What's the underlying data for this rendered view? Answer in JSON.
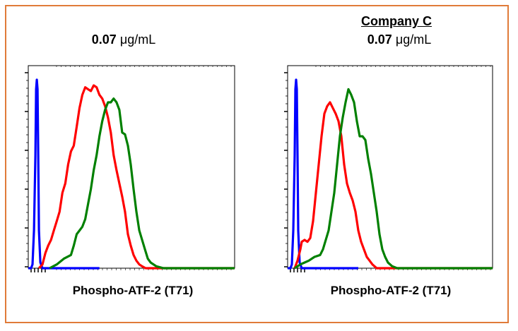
{
  "chart_data": [
    {
      "type": "line",
      "panel_header": "",
      "title_value": "0.07",
      "title_unit": " μg/mL",
      "xlabel": "Phospho-ATF-2 (T71)",
      "ylabel": "",
      "x_scale": "log",
      "grid": false,
      "series": [
        {
          "color": "#0000ff",
          "points": [
            [
              0,
              0
            ],
            [
              4,
              0
            ],
            [
              6,
              2
            ],
            [
              8,
              20
            ],
            [
              10,
              60
            ],
            [
              11,
              95
            ],
            [
              12,
              100
            ],
            [
              13,
              95
            ],
            [
              14,
              60
            ],
            [
              15,
              20
            ],
            [
              17,
              3
            ],
            [
              20,
              0
            ],
            [
              100,
              0
            ]
          ]
        },
        {
          "color": "#ff0000",
          "points": [
            [
              15,
              0
            ],
            [
              20,
              2
            ],
            [
              24,
              8
            ],
            [
              28,
              12
            ],
            [
              32,
              15
            ],
            [
              36,
              20
            ],
            [
              40,
              25
            ],
            [
              44,
              30
            ],
            [
              48,
              40
            ],
            [
              52,
              45
            ],
            [
              56,
              55
            ],
            [
              60,
              62
            ],
            [
              64,
              65
            ],
            [
              68,
              75
            ],
            [
              72,
              85
            ],
            [
              76,
              92
            ],
            [
              80,
              96
            ],
            [
              84,
              95
            ],
            [
              88,
              94
            ],
            [
              92,
              97
            ],
            [
              96,
              96
            ],
            [
              100,
              92
            ],
            [
              104,
              90
            ],
            [
              108,
              86
            ],
            [
              112,
              80
            ],
            [
              116,
              72
            ],
            [
              120,
              60
            ],
            [
              124,
              52
            ],
            [
              128,
              45
            ],
            [
              132,
              38
            ],
            [
              136,
              30
            ],
            [
              140,
              18
            ],
            [
              144,
              12
            ],
            [
              148,
              7
            ],
            [
              152,
              4
            ],
            [
              156,
              2
            ],
            [
              160,
              1
            ],
            [
              165,
              0
            ],
            [
              290,
              0
            ]
          ]
        },
        {
          "color": "#008000",
          "points": [
            [
              30,
              0
            ],
            [
              40,
              2
            ],
            [
              50,
              5
            ],
            [
              60,
              7
            ],
            [
              64,
              12
            ],
            [
              68,
              18
            ],
            [
              72,
              20
            ],
            [
              76,
              22
            ],
            [
              80,
              26
            ],
            [
              84,
              34
            ],
            [
              88,
              42
            ],
            [
              92,
              52
            ],
            [
              96,
              60
            ],
            [
              100,
              70
            ],
            [
              104,
              78
            ],
            [
              108,
              84
            ],
            [
              112,
              88
            ],
            [
              116,
              88
            ],
            [
              120,
              90
            ],
            [
              124,
              88
            ],
            [
              128,
              84
            ],
            [
              132,
              72
            ],
            [
              136,
              71
            ],
            [
              140,
              65
            ],
            [
              144,
              55
            ],
            [
              148,
              42
            ],
            [
              152,
              30
            ],
            [
              156,
              20
            ],
            [
              160,
              15
            ],
            [
              164,
              10
            ],
            [
              168,
              5
            ],
            [
              172,
              3
            ],
            [
              180,
              1
            ],
            [
              190,
              0
            ],
            [
              290,
              0
            ]
          ]
        }
      ]
    },
    {
      "type": "line",
      "panel_header": "Company C",
      "title_value": "0.07",
      "title_unit": " μg/mL",
      "xlabel": "Phospho-ATF-2 (T71)",
      "ylabel": "",
      "x_scale": "log",
      "grid": false,
      "series": [
        {
          "color": "#0000ff",
          "points": [
            [
              0,
              0
            ],
            [
              4,
              0
            ],
            [
              6,
              2
            ],
            [
              8,
              20
            ],
            [
              10,
              60
            ],
            [
              11,
              95
            ],
            [
              12,
              100
            ],
            [
              13,
              95
            ],
            [
              14,
              60
            ],
            [
              15,
              20
            ],
            [
              17,
              3
            ],
            [
              20,
              0
            ],
            [
              100,
              0
            ]
          ]
        },
        {
          "color": "#ff0000",
          "points": [
            [
              10,
              0
            ],
            [
              14,
              4
            ],
            [
              18,
              10
            ],
            [
              20,
              14
            ],
            [
              24,
              15
            ],
            [
              28,
              14
            ],
            [
              32,
              16
            ],
            [
              36,
              25
            ],
            [
              40,
              40
            ],
            [
              44,
              55
            ],
            [
              48,
              70
            ],
            [
              52,
              82
            ],
            [
              56,
              86
            ],
            [
              60,
              88
            ],
            [
              64,
              85
            ],
            [
              68,
              82
            ],
            [
              72,
              78
            ],
            [
              76,
              70
            ],
            [
              80,
              55
            ],
            [
              84,
              45
            ],
            [
              88,
              40
            ],
            [
              92,
              36
            ],
            [
              96,
              30
            ],
            [
              100,
              20
            ],
            [
              104,
              14
            ],
            [
              108,
              10
            ],
            [
              112,
              6
            ],
            [
              116,
              4
            ],
            [
              120,
              2
            ],
            [
              126,
              0
            ],
            [
              290,
              0
            ]
          ]
        },
        {
          "color": "#008000",
          "points": [
            [
              10,
              0
            ],
            [
              18,
              2
            ],
            [
              24,
              3
            ],
            [
              30,
              4
            ],
            [
              38,
              6
            ],
            [
              46,
              7
            ],
            [
              50,
              10
            ],
            [
              54,
              15
            ],
            [
              58,
              20
            ],
            [
              62,
              30
            ],
            [
              66,
              40
            ],
            [
              70,
              55
            ],
            [
              74,
              70
            ],
            [
              78,
              80
            ],
            [
              82,
              88
            ],
            [
              86,
              95
            ],
            [
              90,
              92
            ],
            [
              94,
              88
            ],
            [
              98,
              78
            ],
            [
              102,
              70
            ],
            [
              106,
              70
            ],
            [
              110,
              68
            ],
            [
              114,
              58
            ],
            [
              118,
              50
            ],
            [
              122,
              40
            ],
            [
              126,
              30
            ],
            [
              130,
              18
            ],
            [
              134,
              10
            ],
            [
              138,
              6
            ],
            [
              142,
              3
            ],
            [
              148,
              1
            ],
            [
              155,
              0
            ],
            [
              290,
              0
            ]
          ]
        }
      ]
    }
  ]
}
